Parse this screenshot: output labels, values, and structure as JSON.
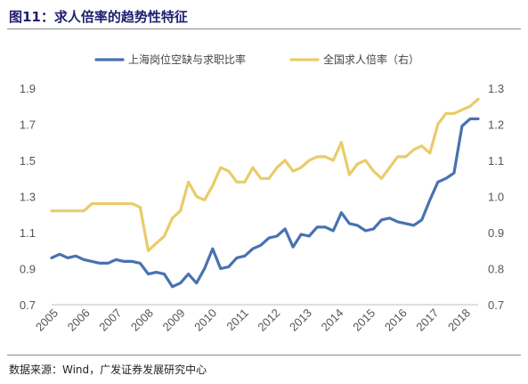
{
  "title": "图11：求人倍率的趋势性特征",
  "source": "数据来源：Wind，广发证券发展研究中心",
  "chart_data": {
    "type": "line",
    "legend_position": "top",
    "grid": false,
    "x_tick_labels": [
      "2005",
      "2006",
      "2007",
      "2008",
      "2009",
      "2010",
      "2011",
      "2012",
      "2013",
      "2014",
      "2015",
      "2016",
      "2017",
      "2018"
    ],
    "xlim": [
      2005.0,
      2018.25
    ],
    "y_left": {
      "ylim": [
        0.7,
        1.9
      ],
      "ticks": [
        "0.7",
        "0.9",
        "1.1",
        "1.3",
        "1.5",
        "1.7",
        "1.9"
      ]
    },
    "y_right": {
      "ylim": [
        0.7,
        1.3
      ],
      "ticks": [
        "0.7",
        "0.8",
        "0.9",
        "1.0",
        "1.1",
        "1.2",
        "1.3"
      ]
    },
    "series": [
      {
        "name": "上海岗位空缺与求职比率",
        "axis": "left",
        "color": "#4872b0",
        "x": [
          2005.0,
          2005.25,
          2005.5,
          2005.75,
          2006.0,
          2006.25,
          2006.5,
          2006.75,
          2007.0,
          2007.25,
          2007.5,
          2007.75,
          2008.0,
          2008.25,
          2008.5,
          2008.75,
          2009.0,
          2009.25,
          2009.5,
          2009.75,
          2010.0,
          2010.25,
          2010.5,
          2010.75,
          2011.0,
          2011.25,
          2011.5,
          2011.75,
          2012.0,
          2012.25,
          2012.5,
          2012.75,
          2013.0,
          2013.25,
          2013.5,
          2013.75,
          2014.0,
          2014.25,
          2014.5,
          2014.75,
          2015.0,
          2015.25,
          2015.5,
          2015.75,
          2016.0,
          2016.25,
          2016.5,
          2016.75,
          2017.0,
          2017.25,
          2017.5,
          2017.75,
          2018.0,
          2018.25
        ],
        "values": [
          0.96,
          0.98,
          0.96,
          0.97,
          0.95,
          0.94,
          0.93,
          0.93,
          0.95,
          0.94,
          0.94,
          0.93,
          0.87,
          0.88,
          0.87,
          0.8,
          0.82,
          0.87,
          0.82,
          0.9,
          1.01,
          0.9,
          0.91,
          0.96,
          0.97,
          1.01,
          1.03,
          1.07,
          1.08,
          1.12,
          1.02,
          1.09,
          1.08,
          1.13,
          1.13,
          1.11,
          1.21,
          1.15,
          1.14,
          1.11,
          1.12,
          1.17,
          1.18,
          1.16,
          1.15,
          1.14,
          1.17,
          1.28,
          1.38,
          1.4,
          1.43,
          1.69,
          1.73,
          1.73
        ]
      },
      {
        "name": "全国求人倍率（右）",
        "axis": "right",
        "color": "#e9cc6a",
        "x": [
          2005.0,
          2005.25,
          2005.5,
          2005.75,
          2006.0,
          2006.25,
          2006.5,
          2006.75,
          2007.0,
          2007.25,
          2007.5,
          2007.75,
          2008.0,
          2008.25,
          2008.5,
          2008.75,
          2009.0,
          2009.25,
          2009.5,
          2009.75,
          2010.0,
          2010.25,
          2010.5,
          2010.75,
          2011.0,
          2011.25,
          2011.5,
          2011.75,
          2012.0,
          2012.25,
          2012.5,
          2012.75,
          2013.0,
          2013.25,
          2013.5,
          2013.75,
          2014.0,
          2014.25,
          2014.5,
          2014.75,
          2015.0,
          2015.25,
          2015.5,
          2015.75,
          2016.0,
          2016.25,
          2016.5,
          2016.75,
          2017.0,
          2017.25,
          2017.5,
          2017.75,
          2018.0,
          2018.25
        ],
        "values": [
          0.96,
          0.96,
          0.96,
          0.96,
          0.96,
          0.98,
          0.98,
          0.98,
          0.98,
          0.98,
          0.98,
          0.97,
          0.85,
          0.87,
          0.89,
          0.94,
          0.96,
          1.04,
          1.0,
          0.99,
          1.03,
          1.08,
          1.07,
          1.04,
          1.04,
          1.08,
          1.05,
          1.05,
          1.08,
          1.1,
          1.07,
          1.08,
          1.1,
          1.11,
          1.11,
          1.1,
          1.15,
          1.06,
          1.09,
          1.1,
          1.07,
          1.05,
          1.08,
          1.11,
          1.11,
          1.13,
          1.14,
          1.12,
          1.2,
          1.23,
          1.23,
          1.24,
          1.25,
          1.27
        ]
      }
    ]
  }
}
